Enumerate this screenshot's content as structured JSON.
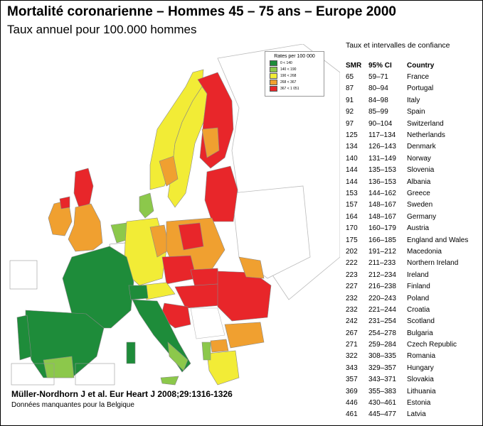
{
  "title": "Mortalité coronarienne – Hommes 45 – 75 ans – Europe 2000",
  "subtitle": "Taux annuel pour 100.000 hommes",
  "legend": {
    "title": "Rates per 100 000",
    "items": [
      {
        "label": "0 < 140",
        "color": "#1e8c3a"
      },
      {
        "label": "140 < 190",
        "color": "#8cc84b"
      },
      {
        "label": "190 < 268",
        "color": "#f2ec36"
      },
      {
        "label": "268 < 367",
        "color": "#f0a030"
      },
      {
        "label": "367 < 1 051",
        "color": "#e8262a"
      }
    ]
  },
  "table": {
    "header_note": "Taux et intervalles de confiance",
    "columns": [
      "SMR",
      "95% CI",
      "Country"
    ],
    "rows": [
      [
        "65",
        "59–71",
        "France"
      ],
      [
        "87",
        "80–94",
        "Portugal"
      ],
      [
        "91",
        "84–98",
        "Italy"
      ],
      [
        "92",
        "85–99",
        "Spain"
      ],
      [
        "97",
        "90–104",
        "Switzerland"
      ],
      [
        "125",
        "117–134",
        "Netherlands"
      ],
      [
        "134",
        "126–143",
        "Denmark"
      ],
      [
        "140",
        "131–149",
        "Norway"
      ],
      [
        "144",
        "135–153",
        "Slovenia"
      ],
      [
        "144",
        "136–153",
        "Albania"
      ],
      [
        "153",
        "144–162",
        "Greece"
      ],
      [
        "157",
        "148–167",
        "Sweden"
      ],
      [
        "164",
        "148–167",
        "Germany"
      ],
      [
        "170",
        "160–179",
        "Austria"
      ],
      [
        "175",
        "166–185",
        "England and Wales"
      ],
      [
        "202",
        "191–212",
        "Macedonia"
      ],
      [
        "222",
        "211–233",
        "Northern Ireland"
      ],
      [
        "223",
        "212–234",
        "Ireland"
      ],
      [
        "227",
        "216–238",
        "Finland"
      ],
      [
        "232",
        "220–243",
        "Poland"
      ],
      [
        "232",
        "221–244",
        "Croatia"
      ],
      [
        "242",
        "231–254",
        "Scotland"
      ],
      [
        "267",
        "254–278",
        "Bulgaria"
      ],
      [
        "271",
        "259–284",
        "Czech Republic"
      ],
      [
        "322",
        "308–335",
        "Romania"
      ],
      [
        "343",
        "329–357",
        "Hungary"
      ],
      [
        "357",
        "343–371",
        "Slovakia"
      ],
      [
        "369",
        "355–383",
        "Lithuania"
      ],
      [
        "446",
        "430–461",
        "Estonia"
      ],
      [
        "461",
        "445–477",
        "Latvia"
      ]
    ]
  },
  "citation": "Müller-Nordhorn J et al. Eur Heart J 2008;29:1316-1326",
  "note": "Données manquantes pour la Belgique",
  "regions": [
    {
      "name": "france",
      "class": "green-dark"
    },
    {
      "name": "spain",
      "class": "green-dark"
    },
    {
      "name": "portugal",
      "class": "green-dark"
    },
    {
      "name": "italy-north",
      "class": "green-dark"
    },
    {
      "name": "italy-south",
      "class": "green-light"
    },
    {
      "name": "switzerland",
      "class": "green-dark"
    },
    {
      "name": "netherlands",
      "class": "green-light"
    },
    {
      "name": "denmark",
      "class": "green-light"
    },
    {
      "name": "norway",
      "class": "yellow"
    },
    {
      "name": "sweden",
      "class": "yellow"
    },
    {
      "name": "finland",
      "class": "red"
    },
    {
      "name": "germany",
      "class": "yellow"
    },
    {
      "name": "poland",
      "class": "orange"
    },
    {
      "name": "czech-republic",
      "class": "red"
    },
    {
      "name": "hungary",
      "class": "red"
    },
    {
      "name": "romania",
      "class": "red"
    },
    {
      "name": "bulgaria",
      "class": "orange"
    },
    {
      "name": "scotland",
      "class": "red"
    },
    {
      "name": "england",
      "class": "orange"
    },
    {
      "name": "ireland",
      "class": "orange"
    },
    {
      "name": "baltics",
      "class": "red"
    }
  ]
}
